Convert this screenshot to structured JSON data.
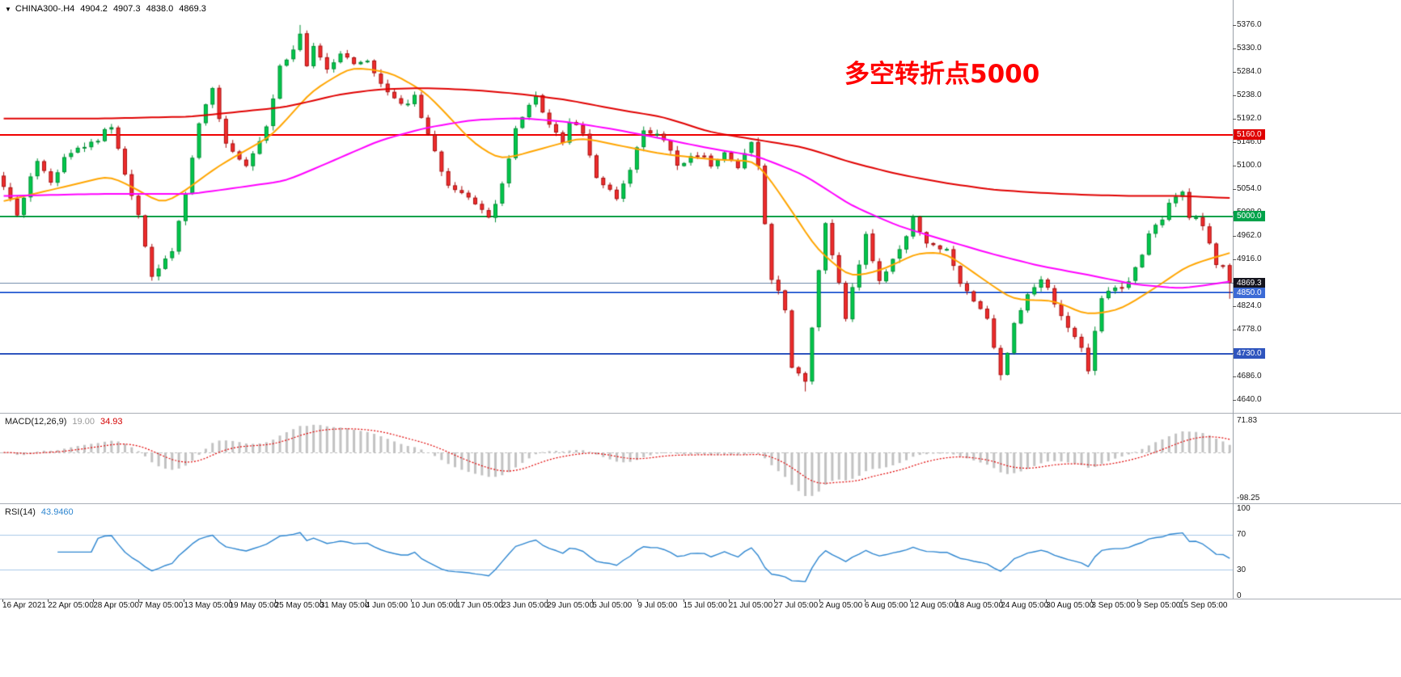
{
  "header": {
    "marker": "▼",
    "title": "CHINA300-.H4",
    "open": "4904.2",
    "high": "4907.3",
    "low": "4838.0",
    "close": "4869.3"
  },
  "annotation": {
    "text": "多空转折点5000",
    "color": "#FF0000"
  },
  "price_axis": {
    "ticks": [
      "5376.0",
      "5330.0",
      "5284.0",
      "5238.0",
      "5192.0",
      "5146.0",
      "5100.0",
      "5054.0",
      "5008.0",
      "4962.0",
      "4916.0",
      "4870.0",
      "4824.0",
      "4778.0",
      "4732.0",
      "4686.0",
      "4640.0"
    ],
    "badges": [
      {
        "label": "5160.0",
        "price": 5160,
        "bg": "#DF0000"
      },
      {
        "label": "5000.0",
        "price": 5000,
        "bg": "#00A24A"
      },
      {
        "label": "4869.3",
        "price": 4869.3,
        "bg": "#14141e"
      },
      {
        "label": "4850.0",
        "price": 4850,
        "bg": "#3C6BD6"
      },
      {
        "label": "4730.0",
        "price": 4730,
        "bg": "#2F55BE"
      }
    ]
  },
  "levels": [
    {
      "price": 5160,
      "color": "#F00000",
      "width": 2,
      "name": "resistance-line-5160"
    },
    {
      "price": 5000,
      "color": "#00A24A",
      "width": 2,
      "name": "pivot-line-5000"
    },
    {
      "price": 4869.3,
      "color": "#7a93b0",
      "width": 1,
      "name": "current-price-line"
    },
    {
      "price": 4850,
      "color": "#3C6BD6",
      "width": 2,
      "name": "support-line-4850"
    },
    {
      "price": 4730,
      "color": "#2F55BE",
      "width": 2,
      "name": "support-line-4730"
    }
  ],
  "macd": {
    "label": "MACD(12,26,9)",
    "main_value": "19.00",
    "signal_value": "34.93",
    "axis_max": "71.83",
    "axis_min": "-98.25"
  },
  "rsi": {
    "label": "RSI(14)",
    "value": "43.9460",
    "axis": [
      "100",
      "70",
      "30",
      "0"
    ],
    "levels": [
      70,
      30
    ]
  },
  "time_axis": {
    "labels": [
      "16 Apr 2021",
      "22 Apr 05:00",
      "28 Apr 05:00",
      "7 May 05:00",
      "13 May 05:00",
      "19 May 05:00",
      "25 May 05:00",
      "31 May 05:00",
      "4 Jun 05:00",
      "10 Jun 05:00",
      "17 Jun 05:00",
      "23 Jun 05:00",
      "29 Jun 05:00",
      "5 Jul 05:00",
      "9 Jul 05:00",
      "15 Jul 05:00",
      "21 Jul 05:00",
      "27 Jul 05:00",
      "2 Aug 05:00",
      "6 Aug 05:00",
      "12 Aug 05:00",
      "18 Aug 05:00",
      "24 Aug 05:00",
      "30 Aug 05:00",
      "3 Sep 05:00",
      "9 Sep 05:00",
      "15 Sep 05:00"
    ]
  },
  "colors": {
    "up_fill": "#00C84C",
    "up_border": "#008F35",
    "down_fill": "#EF2D2D",
    "down_border": "#A80F0F",
    "ma_fast": "#FFA500",
    "ma_mid": "#FF00FF",
    "ma_slow": "#E00000",
    "macd_hist": "#C2C2C2",
    "macd_hist_edge": "#9b9b9b",
    "macd_signal": "#E00000",
    "rsi_line": "#2E86D0",
    "rsi_level": "#A9C9E8",
    "annotation": "#FF0000"
  },
  "chart_data": {
    "type": "candlestick",
    "symbol": "CHINA300-",
    "timeframe": "H4",
    "title": "多空转折点5000",
    "bars": 183,
    "seed": 9,
    "noise": 13,
    "wick": 8,
    "ylim": [
      4614,
      5425
    ],
    "y_ticks": [
      5376,
      5330,
      5284,
      5238,
      5192,
      5146,
      5100,
      5054,
      5008,
      4962,
      4916,
      4870,
      4824,
      4778,
      4732,
      4686,
      4640
    ],
    "x_labels": [
      "16 Apr 2021",
      "22 Apr 05:00",
      "28 Apr 05:00",
      "7 May 05:00",
      "13 May 05:00",
      "19 May 05:00",
      "25 May 05:00",
      "31 May 05:00",
      "4 Jun 05:00",
      "10 Jun 05:00",
      "17 Jun 05:00",
      "23 Jun 05:00",
      "29 Jun 05:00",
      "5 Jul 05:00",
      "9 Jul 05:00",
      "15 Jul 05:00",
      "21 Jul 05:00",
      "27 Jul 05:00",
      "2 Aug 05:00",
      "6 Aug 05:00",
      "12 Aug 05:00",
      "18 Aug 05:00",
      "24 Aug 05:00",
      "30 Aug 05:00",
      "3 Sep 05:00",
      "9 Sep 05:00",
      "15 Sep 05:00"
    ],
    "last_bar": {
      "open": 4904.2,
      "high": 4907.3,
      "low": 4838.0,
      "close": 4869.3
    },
    "current_price": 4869.3,
    "horizontal_levels": [
      5160,
      5000,
      4850,
      4730
    ],
    "close_anchors": [
      [
        0,
        5060
      ],
      [
        2,
        5000
      ],
      [
        5,
        5110
      ],
      [
        7,
        5070
      ],
      [
        10,
        5130
      ],
      [
        14,
        5150
      ],
      [
        16,
        5180
      ],
      [
        18,
        5080
      ],
      [
        20,
        5000
      ],
      [
        22,
        4878
      ],
      [
        25,
        4930
      ],
      [
        27,
        5050
      ],
      [
        29,
        5180
      ],
      [
        31,
        5255
      ],
      [
        33,
        5140
      ],
      [
        36,
        5100
      ],
      [
        39,
        5180
      ],
      [
        41,
        5290
      ],
      [
        44,
        5355
      ],
      [
        45,
        5295
      ],
      [
        46,
        5330
      ],
      [
        48,
        5290
      ],
      [
        50,
        5320
      ],
      [
        52,
        5300
      ],
      [
        54,
        5310
      ],
      [
        56,
        5260
      ],
      [
        59,
        5220
      ],
      [
        61,
        5235
      ],
      [
        63,
        5160
      ],
      [
        66,
        5060
      ],
      [
        68,
        5045
      ],
      [
        70,
        5020
      ],
      [
        72,
        4995
      ],
      [
        74,
        5060
      ],
      [
        76,
        5175
      ],
      [
        79,
        5235
      ],
      [
        81,
        5180
      ],
      [
        83,
        5150
      ],
      [
        84,
        5190
      ],
      [
        86,
        5160
      ],
      [
        88,
        5080
      ],
      [
        91,
        5040
      ],
      [
        93,
        5090
      ],
      [
        95,
        5170
      ],
      [
        98,
        5150
      ],
      [
        100,
        5100
      ],
      [
        103,
        5125
      ],
      [
        105,
        5100
      ],
      [
        107,
        5130
      ],
      [
        109,
        5095
      ],
      [
        111,
        5145
      ],
      [
        112,
        5100
      ],
      [
        114,
        4880
      ],
      [
        116,
        4820
      ],
      [
        117,
        4700
      ],
      [
        119,
        4672
      ],
      [
        121,
        4890
      ],
      [
        122,
        4985
      ],
      [
        125,
        4805
      ],
      [
        128,
        4960
      ],
      [
        130,
        4870
      ],
      [
        133,
        4930
      ],
      [
        135,
        5000
      ],
      [
        137,
        4950
      ],
      [
        140,
        4930
      ],
      [
        142,
        4870
      ],
      [
        144,
        4830
      ],
      [
        146,
        4800
      ],
      [
        148,
        4685
      ],
      [
        150,
        4790
      ],
      [
        152,
        4850
      ],
      [
        154,
        4880
      ],
      [
        156,
        4830
      ],
      [
        158,
        4780
      ],
      [
        160,
        4740
      ],
      [
        161,
        4698
      ],
      [
        163,
        4840
      ],
      [
        165,
        4855
      ],
      [
        167,
        4870
      ],
      [
        168,
        4900
      ],
      [
        170,
        4960
      ],
      [
        172,
        5000
      ],
      [
        174,
        5040
      ],
      [
        175,
        5055
      ],
      [
        176,
        5000
      ],
      [
        178,
        4985
      ],
      [
        179,
        4945
      ],
      [
        180,
        4905
      ],
      [
        181,
        4904
      ],
      [
        182,
        4869.3
      ]
    ],
    "overrides": {
      "44": {
        "high": 5376
      },
      "119": {
        "low": 4656
      },
      "148": {
        "low": 4678
      },
      "161": {
        "low": 4690
      }
    },
    "ma_fast_anchors": [
      [
        0,
        5030
      ],
      [
        8,
        5055
      ],
      [
        16,
        5080
      ],
      [
        24,
        5022
      ],
      [
        32,
        5100
      ],
      [
        40,
        5160
      ],
      [
        46,
        5250
      ],
      [
        52,
        5295
      ],
      [
        58,
        5280
      ],
      [
        63,
        5240
      ],
      [
        70,
        5140
      ],
      [
        74,
        5110
      ],
      [
        79,
        5130
      ],
      [
        86,
        5155
      ],
      [
        91,
        5140
      ],
      [
        98,
        5122
      ],
      [
        105,
        5112
      ],
      [
        112,
        5108
      ],
      [
        117,
        5010
      ],
      [
        121,
        4930
      ],
      [
        126,
        4878
      ],
      [
        131,
        4898
      ],
      [
        136,
        4930
      ],
      [
        140,
        4928
      ],
      [
        145,
        4880
      ],
      [
        150,
        4835
      ],
      [
        156,
        4835
      ],
      [
        161,
        4805
      ],
      [
        166,
        4818
      ],
      [
        171,
        4860
      ],
      [
        176,
        4905
      ],
      [
        182,
        4928
      ]
    ],
    "ma_mid_anchors": [
      [
        0,
        5040
      ],
      [
        14,
        5044
      ],
      [
        28,
        5044
      ],
      [
        42,
        5070
      ],
      [
        49,
        5110
      ],
      [
        56,
        5150
      ],
      [
        63,
        5175
      ],
      [
        70,
        5190
      ],
      [
        77,
        5193
      ],
      [
        84,
        5185
      ],
      [
        91,
        5170
      ],
      [
        98,
        5152
      ],
      [
        105,
        5133
      ],
      [
        112,
        5118
      ],
      [
        119,
        5080
      ],
      [
        126,
        5020
      ],
      [
        133,
        4980
      ],
      [
        140,
        4952
      ],
      [
        147,
        4925
      ],
      [
        154,
        4902
      ],
      [
        161,
        4885
      ],
      [
        168,
        4866
      ],
      [
        175,
        4858
      ],
      [
        182,
        4872
      ]
    ],
    "ma_slow_anchors": [
      [
        0,
        5192
      ],
      [
        14,
        5192
      ],
      [
        28,
        5196
      ],
      [
        42,
        5215
      ],
      [
        50,
        5240
      ],
      [
        56,
        5250
      ],
      [
        63,
        5252
      ],
      [
        70,
        5248
      ],
      [
        77,
        5240
      ],
      [
        84,
        5228
      ],
      [
        91,
        5210
      ],
      [
        98,
        5195
      ],
      [
        105,
        5165
      ],
      [
        112,
        5150
      ],
      [
        119,
        5135
      ],
      [
        126,
        5105
      ],
      [
        133,
        5082
      ],
      [
        140,
        5065
      ],
      [
        147,
        5052
      ],
      [
        154,
        5046
      ],
      [
        161,
        5042
      ],
      [
        168,
        5040
      ],
      [
        175,
        5040
      ],
      [
        182,
        5036
      ]
    ],
    "indicators": [
      {
        "name": "MACD",
        "params": [
          12,
          26,
          9
        ],
        "display_values": [
          19.0,
          34.93
        ],
        "range": [
          -98.25,
          71.83
        ]
      },
      {
        "name": "RSI",
        "params": [
          14
        ],
        "display_value": 43.946,
        "range": [
          0,
          100
        ],
        "levels": [
          30,
          70
        ]
      }
    ]
  }
}
